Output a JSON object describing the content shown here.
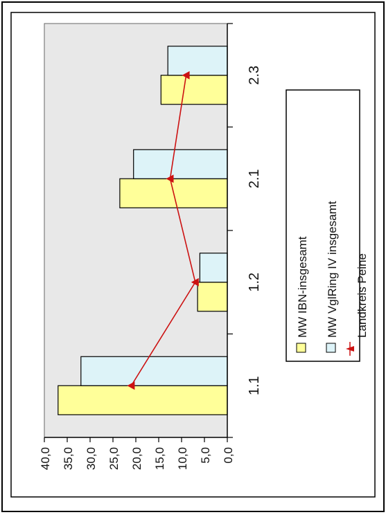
{
  "chart_data": {
    "type": "bar",
    "orientation": "rotated",
    "categories": [
      "1.1",
      "1.2",
      "2.1",
      "2.3"
    ],
    "series": [
      {
        "name": "MW IBN-insgesamt",
        "kind": "bar",
        "values": [
          37.0,
          6.5,
          23.5,
          14.5
        ],
        "color": "#ffff99"
      },
      {
        "name": "MW VglRing IV  insgesamt",
        "kind": "bar",
        "values": [
          32.0,
          6.0,
          20.5,
          13.0
        ],
        "color": "#ddf3f8"
      },
      {
        "name": "Landkreis Peine",
        "kind": "line",
        "values": [
          21.0,
          7.0,
          12.5,
          9.0
        ],
        "color": "#cc1111"
      }
    ],
    "value_ticks": [
      "40,0",
      "35,0",
      "30,0",
      "25,0",
      "20,0",
      "15,0",
      "10,0",
      "5,0",
      "0,0"
    ],
    "ylim": [
      0,
      40
    ],
    "grid": false,
    "plot_background": "#e8e8e8",
    "legend_position": "right"
  }
}
